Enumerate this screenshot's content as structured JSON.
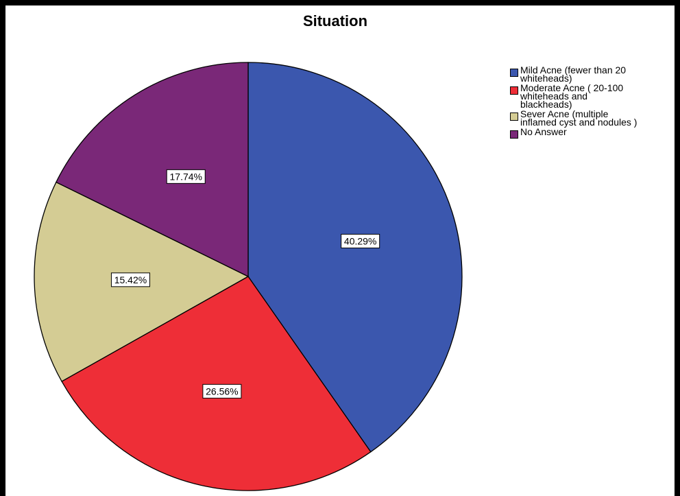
{
  "chart_data": {
    "type": "pie",
    "title": "Situation",
    "categories": [
      "Mild Acne (fewer than 20 whiteheads)",
      "Moderate Acne ( 20-100 whiteheads and blackheads)",
      "Sever Acne (multiple inflamed cyst and nodules )",
      "No Answer"
    ],
    "values": [
      40.29,
      26.56,
      15.42,
      17.74
    ],
    "labels": [
      "40.29%",
      "26.56%",
      "15.42%",
      "17.74%"
    ],
    "colors": [
      "#3B57AE",
      "#EE2E37",
      "#D4CC94",
      "#7A2878"
    ],
    "legend_position": "top-right",
    "start": "12 o'clock",
    "direction": "clockwise"
  },
  "legend": [
    {
      "text": "Mild Acne (fewer than 20\nwhiteheads)"
    },
    {
      "text": "Moderate Acne ( 20-100\nwhiteheads and\nblackheads)"
    },
    {
      "text": "Sever Acne (multiple\ninflamed cyst and nodules )"
    },
    {
      "text": "No Answer"
    }
  ]
}
